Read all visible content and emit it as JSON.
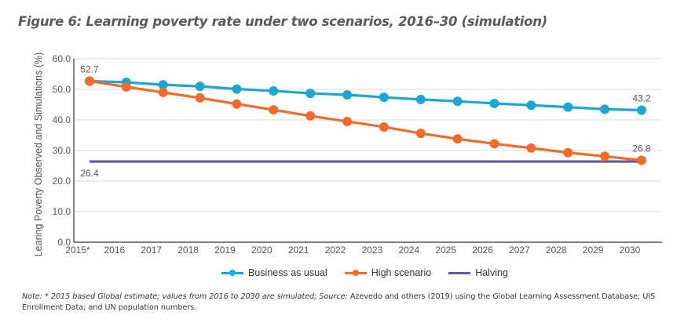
{
  "figure": {
    "title": "Figure 6: Learning poverty rate under two scenarios, 2016–30 (simulation)",
    "note_italic": "Note: * 2015 based Global estimate; values from 2016 to 2030 are simulated; Source:",
    "note_rest": " Azevedo and others (2019) using the Global Learning Assessment Database; UIS Enrollment Data; and UN population numbers."
  },
  "chart_data": {
    "type": "line",
    "title": "Figure 6: Learning poverty rate under two scenarios, 2016–30 (simulation)",
    "xlabel": "",
    "ylabel": "Learing Poverty Observed and Simulations  (%)",
    "x": [
      "2015*",
      "2016",
      "2017",
      "2018",
      "2019",
      "2020",
      "2021",
      "2022",
      "2023",
      "2024",
      "2025",
      "2026",
      "2027",
      "2028",
      "2029",
      "2030"
    ],
    "ylim": [
      0,
      60
    ],
    "yticks": [
      "0.0",
      "10.0",
      "20.0",
      "30.0",
      "40.0",
      "50.0",
      "60.0"
    ],
    "grid": true,
    "legend_position": "bottom",
    "series": [
      {
        "name": "Business as usual",
        "color": "#1aa7d4",
        "markers": true,
        "values": [
          52.7,
          52.3,
          51.5,
          51.0,
          50.1,
          49.5,
          48.7,
          48.2,
          47.4,
          46.7,
          46.1,
          45.4,
          44.8,
          44.2,
          43.5,
          43.2
        ]
      },
      {
        "name": "High scenario",
        "color": "#f26a2a",
        "markers": true,
        "values": [
          52.7,
          50.8,
          49.0,
          47.2,
          45.2,
          43.3,
          41.3,
          39.5,
          37.7,
          35.6,
          33.8,
          32.2,
          30.8,
          29.3,
          28.1,
          26.8
        ]
      },
      {
        "name": "Halving",
        "color": "#5c5b9b",
        "markers": false,
        "values": [
          26.4,
          26.4,
          26.4,
          26.4,
          26.4,
          26.4,
          26.4,
          26.4,
          26.4,
          26.4,
          26.4,
          26.4,
          26.4,
          26.4,
          26.4,
          26.4
        ]
      }
    ],
    "annotations": [
      {
        "text": "52.7",
        "series": 1,
        "index": 0,
        "pos": "above"
      },
      {
        "text": "26.4",
        "series": 2,
        "index": 0,
        "pos": "below"
      },
      {
        "text": "43.2",
        "series": 0,
        "index": 15,
        "pos": "above"
      },
      {
        "text": "26.8",
        "series": 1,
        "index": 15,
        "pos": "above"
      }
    ]
  }
}
